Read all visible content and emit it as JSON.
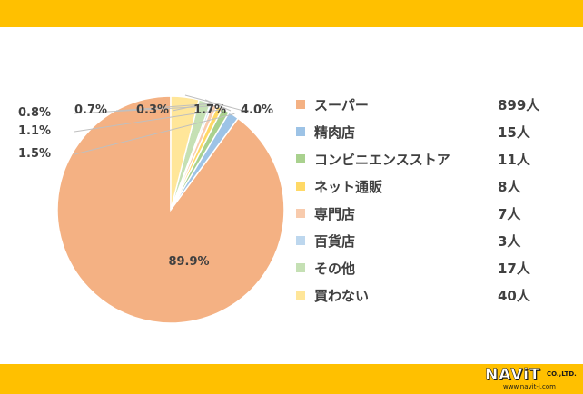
{
  "chart_data": {
    "type": "pie",
    "slices": [
      {
        "label": "スーパー",
        "count": "899人",
        "value": 89.9,
        "pct": "89.9%",
        "color": "#f4b183"
      },
      {
        "label": "精肉店",
        "count": "15人",
        "value": 1.5,
        "pct": "1.5%",
        "color": "#9dc3e6"
      },
      {
        "label": "コンビニエンスストア",
        "count": "11人",
        "value": 1.1,
        "pct": "1.1%",
        "color": "#a9d18e"
      },
      {
        "label": "ネット通販",
        "count": "8人",
        "value": 0.8,
        "pct": "0.8%",
        "color": "#ffd966"
      },
      {
        "label": "専門店",
        "count": "7人",
        "value": 0.7,
        "pct": "0.7%",
        "color": "#f8cbad"
      },
      {
        "label": "百貨店",
        "count": "3人",
        "value": 0.3,
        "pct": "0.3%",
        "color": "#bdd7ee"
      },
      {
        "label": "その他",
        "count": "17人",
        "value": 1.7,
        "pct": "1.7%",
        "color": "#c5e0b4"
      },
      {
        "label": "買わない",
        "count": "40人",
        "value": 4.0,
        "pct": "4.0%",
        "color": "#ffe699"
      }
    ],
    "legend_position": "right"
  },
  "logo": {
    "brand": "NAViT",
    "suffix": "CO.,LTD.",
    "url": "www.navit-j.com"
  }
}
